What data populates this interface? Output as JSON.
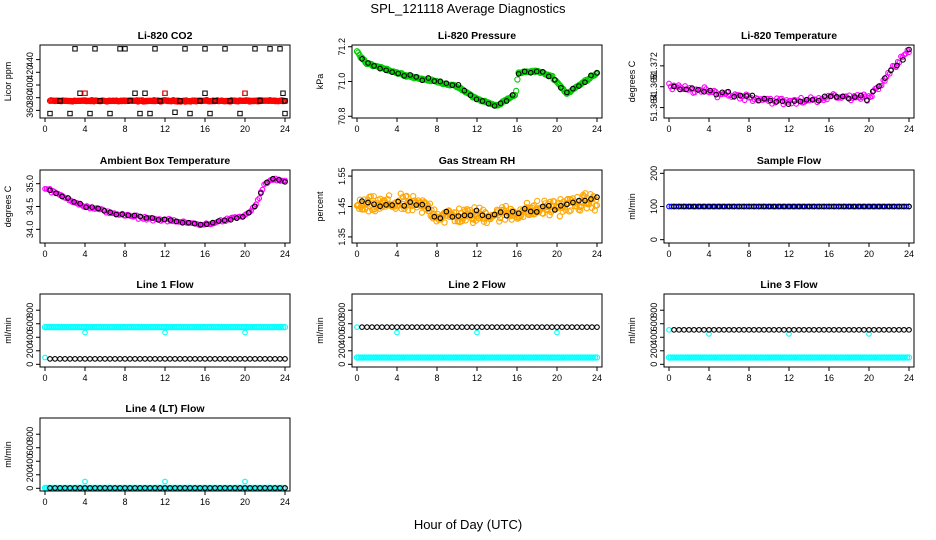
{
  "figure": {
    "title": "SPL_121118  Average Diagnostics",
    "xlabel": "Hour of Day (UTC)"
  },
  "chart_data": [
    {
      "type": "scatter",
      "title": "Li-820 CO2",
      "ylabel": "Licor ppm",
      "xlim": [
        -0.5,
        24.5
      ],
      "ylim": [
        348,
        463
      ],
      "xticks": [
        0,
        4,
        8,
        12,
        16,
        20,
        24
      ],
      "yticks": [
        360,
        380,
        400,
        420,
        440
      ],
      "series": [
        {
          "color": "#ff0000",
          "marker": "dense",
          "pattern": "flat",
          "start": 0.5,
          "end": 24,
          "n": 220,
          "base": 375,
          "amp": 0,
          "noise": 1.5
        },
        {
          "color": "#000000",
          "marker": "square",
          "points": [
            [
              0.5,
              355
            ],
            [
              1.5,
              375
            ],
            [
              2.5,
              355
            ],
            [
              3,
              457
            ],
            [
              3.5,
              387
            ],
            [
              4,
              387
            ],
            [
              4.5,
              355
            ],
            [
              5,
              457
            ],
            [
              5.5,
              375
            ],
            [
              6.5,
              355
            ],
            [
              7.5,
              457
            ],
            [
              8,
              457
            ],
            [
              8.5,
              375
            ],
            [
              9,
              387
            ],
            [
              9.5,
              355
            ],
            [
              10,
              387
            ],
            [
              10.5,
              355
            ],
            [
              11,
              457
            ],
            [
              11.5,
              375
            ],
            [
              12,
              387
            ],
            [
              13,
              357
            ],
            [
              13.5,
              375
            ],
            [
              14,
              457
            ],
            [
              14.5,
              355
            ],
            [
              15.5,
              375
            ],
            [
              16,
              387
            ],
            [
              16,
              457
            ],
            [
              16.5,
              355
            ],
            [
              17,
              375
            ],
            [
              18,
              457
            ],
            [
              18.5,
              375
            ],
            [
              19.5,
              355
            ],
            [
              20,
              387
            ],
            [
              21,
              457
            ],
            [
              21.5,
              375
            ],
            [
              22.5,
              457
            ],
            [
              23.5,
              457
            ],
            [
              23.8,
              387
            ],
            [
              24,
              375
            ],
            [
              24,
              355
            ]
          ]
        },
        {
          "color": "#ff0000",
          "marker": "square",
          "points": [
            [
              4,
              387
            ],
            [
              12,
              387
            ],
            [
              20,
              387
            ]
          ]
        }
      ]
    },
    {
      "type": "scatter",
      "title": "Li-820 Pressure",
      "ylabel": "kPa",
      "xlim": [
        -0.5,
        24.5
      ],
      "ylim": [
        70.79,
        71.21
      ],
      "xticks": [
        0,
        4,
        8,
        12,
        16,
        20,
        24
      ],
      "yticks": [
        70.8,
        71.0,
        71.2
      ],
      "ytick_labels": [
        "70.8",
        "71.0",
        "71.2"
      ],
      "series": [
        {
          "color": "#00cc00",
          "marker": "dense",
          "pattern": "pressure",
          "start": 0,
          "end": 24,
          "n": 200,
          "noise": 0.008
        },
        {
          "color": "#000000",
          "marker": "circle",
          "pattern": "pressure",
          "start": 0.5,
          "end": 24,
          "n": 40,
          "noise": 0.02
        }
      ]
    },
    {
      "type": "scatter",
      "title": "Li-820 Temperature",
      "ylabel": "degrees C",
      "xlim": [
        -0.5,
        24.5
      ],
      "ylim": [
        51.362,
        51.376
      ],
      "xticks": [
        0,
        4,
        8,
        12,
        16,
        20,
        24
      ],
      "yticks": [
        51.364,
        51.368,
        51.372
      ],
      "ytick_labels": [
        "51.364",
        "51.368",
        "51.372"
      ],
      "series": [
        {
          "color": "#ff00ff",
          "marker": "circle",
          "pattern": "temperature",
          "start": 0,
          "end": 24,
          "n": 150,
          "noise": 0.001
        },
        {
          "color": "#000000",
          "marker": "circle",
          "pattern": "temperature",
          "start": 0.5,
          "end": 24,
          "n": 40,
          "noise": 0.0007
        }
      ]
    },
    {
      "type": "scatter",
      "title": "Ambient Box Temperature",
      "ylabel": "degrees C",
      "xlim": [
        -0.5,
        24.5
      ],
      "ylim": [
        33.7,
        35.3
      ],
      "xticks": [
        0,
        4,
        8,
        12,
        16,
        20,
        24
      ],
      "yticks": [
        34.0,
        34.5,
        35.0
      ],
      "ytick_labels": [
        "34.0",
        "34.5",
        "35.0"
      ],
      "series": [
        {
          "color": "#ff00ff",
          "marker": "circle",
          "pattern": "ambient",
          "start": 0,
          "end": 24,
          "n": 150,
          "noise": 0.05
        },
        {
          "color": "#000000",
          "marker": "circle",
          "pattern": "ambient",
          "start": 0.5,
          "end": 24,
          "n": 40,
          "noise": 0.04
        }
      ]
    },
    {
      "type": "scatter",
      "title": "Gas Stream RH",
      "ylabel": "percent",
      "xlim": [
        -0.5,
        24.5
      ],
      "ylim": [
        1.33,
        1.57
      ],
      "xticks": [
        0,
        4,
        8,
        12,
        16,
        20,
        24
      ],
      "yticks": [
        1.35,
        1.45,
        1.55
      ],
      "ytick_labels": [
        "1.35",
        "1.45",
        "1.55"
      ],
      "series": [
        {
          "color": "#ffa500",
          "marker": "dense",
          "pattern": "rh",
          "start": 0,
          "end": 24,
          "n": 330,
          "noise": 0.04
        },
        {
          "color": "#000000",
          "marker": "circle",
          "pattern": "rh",
          "start": 0.5,
          "end": 24,
          "n": 40,
          "noise": 0.025
        }
      ]
    },
    {
      "type": "scatter",
      "title": "Sample Flow",
      "ylabel": "ml/min",
      "xlim": [
        -0.5,
        24.5
      ],
      "ylim": [
        -10,
        210
      ],
      "xticks": [
        0,
        4,
        8,
        12,
        16,
        20,
        24
      ],
      "yticks": [
        0,
        100,
        200
      ],
      "series": [
        {
          "color": "#0000ff",
          "marker": "circle",
          "pattern": "flat",
          "start": 0,
          "end": 24,
          "n": 100,
          "base": 100,
          "amp": 0,
          "noise": 0
        },
        {
          "color": "#000000",
          "marker": "circle",
          "pattern": "flat",
          "start": 0.5,
          "end": 24,
          "n": 48,
          "base": 100,
          "amp": 0,
          "noise": 0
        }
      ]
    },
    {
      "type": "scatter",
      "title": "Line 1 Flow",
      "ylabel": "ml/min",
      "xlim": [
        -0.5,
        24.5
      ],
      "ylim": [
        -40,
        1040
      ],
      "xticks": [
        0,
        4,
        8,
        12,
        16,
        20,
        24
      ],
      "yticks": [
        0,
        200,
        400,
        600,
        800
      ],
      "series": [
        {
          "color": "#00ffff",
          "marker": "dense",
          "pattern": "flat",
          "start": 0,
          "end": 24,
          "n": 130,
          "base": 550,
          "amp": 0,
          "noise": 0
        },
        {
          "color": "#00ffff",
          "marker": "circle",
          "points": [
            [
              0,
              100
            ],
            [
              4,
              470
            ],
            [
              12,
              470
            ],
            [
              20,
              470
            ]
          ]
        },
        {
          "color": "#000000",
          "marker": "circle",
          "pattern": "flat",
          "start": 0.5,
          "end": 24,
          "n": 48,
          "base": 80,
          "amp": 0,
          "noise": 0
        }
      ]
    },
    {
      "type": "scatter",
      "title": "Line 2 Flow",
      "ylabel": "ml/min",
      "xlim": [
        -0.5,
        24.5
      ],
      "ylim": [
        -40,
        1040
      ],
      "xticks": [
        0,
        4,
        8,
        12,
        16,
        20,
        24
      ],
      "yticks": [
        0,
        200,
        400,
        600,
        800
      ],
      "series": [
        {
          "color": "#00ffff",
          "marker": "dense",
          "pattern": "flat",
          "start": 0,
          "end": 24,
          "n": 130,
          "base": 100,
          "amp": 0,
          "noise": 0
        },
        {
          "color": "#00ffff",
          "marker": "circle",
          "points": [
            [
              0,
              550
            ],
            [
              4,
              470
            ],
            [
              12,
              470
            ],
            [
              20,
              470
            ]
          ]
        },
        {
          "color": "#000000",
          "marker": "circle",
          "pattern": "flat",
          "start": 0.5,
          "end": 24,
          "n": 48,
          "base": 550,
          "amp": 0,
          "noise": 0
        }
      ]
    },
    {
      "type": "scatter",
      "title": "Line 3 Flow",
      "ylabel": "ml/min",
      "xlim": [
        -0.5,
        24.5
      ],
      "ylim": [
        -40,
        1040
      ],
      "xticks": [
        0,
        4,
        8,
        12,
        16,
        20,
        24
      ],
      "yticks": [
        0,
        200,
        400,
        600,
        800
      ],
      "series": [
        {
          "color": "#00ffff",
          "marker": "dense",
          "pattern": "flat",
          "start": 0,
          "end": 24,
          "n": 130,
          "base": 100,
          "amp": 0,
          "noise": 0
        },
        {
          "color": "#00ffff",
          "marker": "circle",
          "points": [
            [
              0,
              510
            ],
            [
              4,
              450
            ],
            [
              12,
              450
            ],
            [
              20,
              450
            ]
          ]
        },
        {
          "color": "#000000",
          "marker": "circle",
          "pattern": "flat",
          "start": 0.5,
          "end": 24,
          "n": 48,
          "base": 510,
          "amp": 0,
          "noise": 0
        }
      ]
    },
    {
      "type": "scatter",
      "title": "Line 4 (LT) Flow",
      "ylabel": "ml/min",
      "xlim": [
        -0.5,
        24.5
      ],
      "ylim": [
        -40,
        1040
      ],
      "xticks": [
        0,
        4,
        8,
        12,
        16,
        20,
        24
      ],
      "yticks": [
        0,
        200,
        400,
        600,
        800
      ],
      "series": [
        {
          "color": "#00ffff",
          "marker": "dense",
          "pattern": "flat",
          "start": 0,
          "end": 24,
          "n": 130,
          "base": 5,
          "amp": 0,
          "noise": 0
        },
        {
          "color": "#00ffff",
          "marker": "circle",
          "points": [
            [
              0,
              5
            ],
            [
              4,
              100
            ],
            [
              12,
              100
            ],
            [
              20,
              100
            ]
          ]
        },
        {
          "color": "#000000",
          "marker": "circle",
          "pattern": "flat",
          "start": 0.5,
          "end": 24,
          "n": 48,
          "base": 5,
          "amp": 0,
          "noise": 0
        }
      ]
    }
  ]
}
